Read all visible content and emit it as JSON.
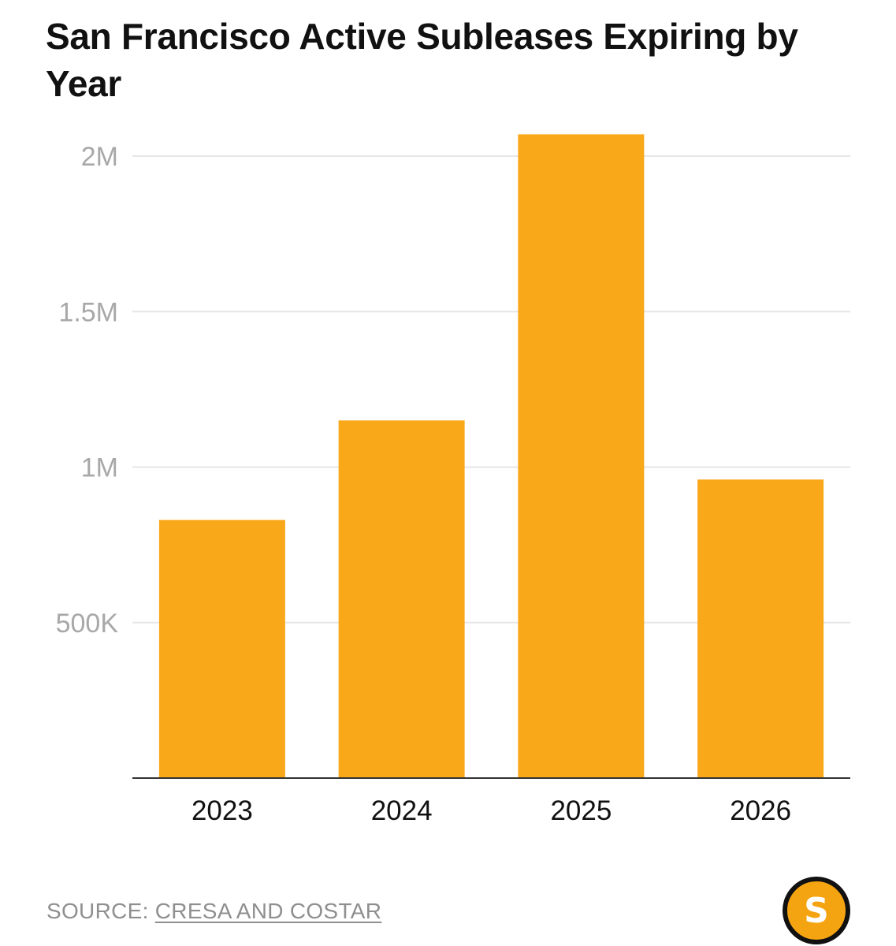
{
  "header": {
    "title": "San Francisco Active Subleases Expiring by Year"
  },
  "chart_data": {
    "type": "bar",
    "title": "San Francisco Active Subleases Expiring by Year",
    "xlabel": "",
    "ylabel": "",
    "categories": [
      "2023",
      "2024",
      "2025",
      "2026"
    ],
    "values": [
      830000,
      1150000,
      2070000,
      960000
    ],
    "ylim": [
      0,
      2000000
    ],
    "yticks": [
      {
        "value": 500000,
        "label": "500K"
      },
      {
        "value": 1000000,
        "label": "1M"
      },
      {
        "value": 1500000,
        "label": "1.5M"
      },
      {
        "value": 2000000,
        "label": "2M"
      }
    ],
    "grid": true,
    "bar_color": "#F9A81A",
    "legend": "none"
  },
  "footer": {
    "source_prefix": "SOURCE:",
    "source_link": "CRESA AND COSTAR",
    "logo_letter": "S"
  },
  "colors": {
    "bar": "#F9A81A",
    "gridline": "#e6e6e6",
    "axis": "#333333",
    "logo_fill": "#F5A411"
  }
}
